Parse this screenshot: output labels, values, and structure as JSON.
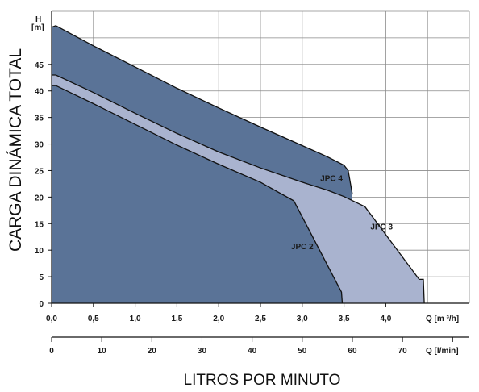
{
  "chart_data": {
    "type": "area",
    "ylabel": "CARGA DINÁMICA TOTAL",
    "xlabel": "LITROS POR MINUTO",
    "y_unit_top": "H",
    "y_unit_bottom": "[m]",
    "x_unit": "Q [m ³/h]",
    "x2_unit": "Q [l/min]",
    "ylim": [
      0,
      55
    ],
    "xlim": [
      0,
      5.0
    ],
    "x2lim": [
      0,
      83.3
    ],
    "y_ticks": [
      0,
      5,
      10,
      15,
      20,
      25,
      30,
      35,
      40,
      45
    ],
    "x_ticks": [
      "0,0",
      "0,5",
      "1,0",
      "1,5",
      "2,0",
      "2,5",
      "3,0",
      "3,5",
      "4,0"
    ],
    "x_tick_values": [
      0,
      0.5,
      1.0,
      1.5,
      2.0,
      2.5,
      3.0,
      3.5,
      4.0
    ],
    "x2_ticks": [
      "0",
      "10",
      "20",
      "30",
      "40",
      "50",
      "60",
      "70"
    ],
    "x2_tick_values": [
      0,
      10,
      20,
      30,
      40,
      50,
      60,
      70
    ],
    "grid": true,
    "colors": {
      "fill_dark": "#5a7397",
      "fill_light": "#a9b3cf",
      "grid": "#8a8a8a",
      "stroke": "#111111"
    },
    "series": [
      {
        "name": "JPC 4",
        "fill": "dark",
        "x": [
          0,
          0.05,
          0.5,
          1.0,
          1.5,
          2.0,
          2.5,
          3.0,
          3.3,
          3.5,
          3.55,
          3.6
        ],
        "y": [
          52,
          52.3,
          48.5,
          44.5,
          40.5,
          36.8,
          33.2,
          29.7,
          27.6,
          26.0,
          25.0,
          20.5
        ]
      },
      {
        "name": "JPC 3",
        "fill": "light",
        "x": [
          0,
          0.05,
          0.5,
          1.0,
          1.5,
          2.0,
          2.5,
          3.0,
          3.3,
          3.5,
          3.75,
          4.4,
          4.45,
          4.46
        ],
        "y": [
          43,
          43,
          39.7,
          35.8,
          32.0,
          28.5,
          25.5,
          22.8,
          21.3,
          20.1,
          18.2,
          4.5,
          4.5,
          0
        ]
      },
      {
        "name": "JPC 2",
        "fill": "dark",
        "x": [
          0,
          0.05,
          0.5,
          1.0,
          1.5,
          2.0,
          2.5,
          2.9,
          3.47,
          3.48
        ],
        "y": [
          41,
          41,
          37.6,
          33.7,
          29.8,
          26.2,
          22.8,
          19.3,
          2.1,
          0
        ]
      }
    ]
  }
}
